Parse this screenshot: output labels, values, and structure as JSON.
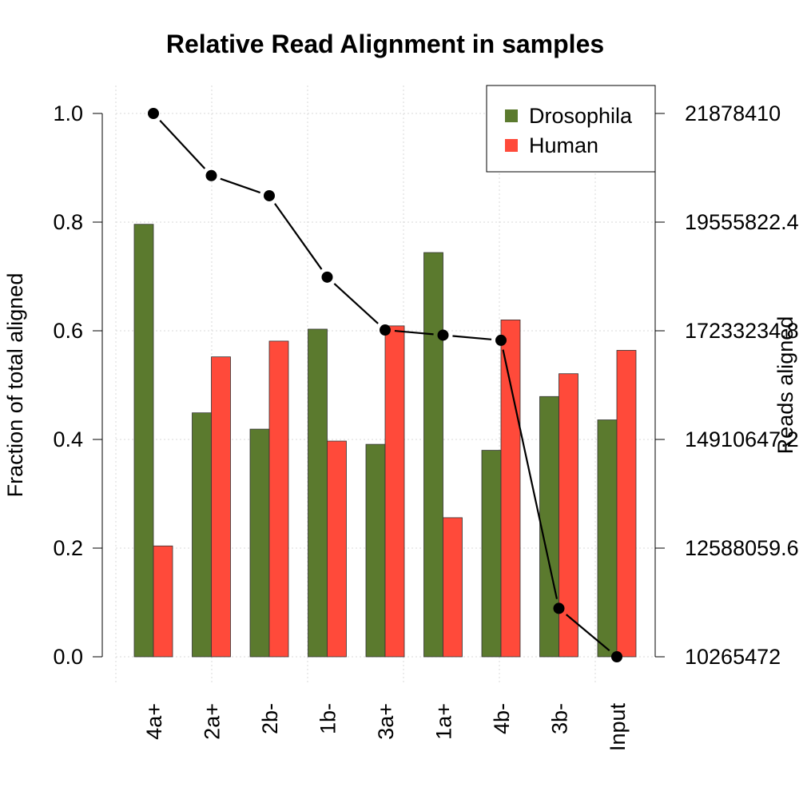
{
  "chart_data": {
    "type": "bar",
    "title": "Relative Read Alignment in samples",
    "xlabel": "",
    "ylabel": "Fraction of total aligned",
    "y2label": "Reads aligned",
    "categories": [
      "4a+",
      "2a+",
      "2b-",
      "1b-",
      "3a+",
      "1a+",
      "4b-",
      "3b-",
      "Input"
    ],
    "series": [
      {
        "name": "Drosophila",
        "color": "#5b7a2e",
        "values": [
          0.796,
          0.449,
          0.419,
          0.603,
          0.391,
          0.744,
          0.38,
          0.479,
          0.436
        ]
      },
      {
        "name": "Human",
        "color": "#ff4a3a",
        "values": [
          0.204,
          0.552,
          0.581,
          0.397,
          0.609,
          0.256,
          0.62,
          0.521,
          0.564
        ]
      }
    ],
    "line": {
      "name": "Reads aligned",
      "axis": "right",
      "values": [
        21878410,
        20550000,
        20120000,
        18380000,
        17250000,
        17140000,
        17030000,
        11300000,
        10265472
      ]
    },
    "ylim": [
      0,
      1
    ],
    "y_ticks": [
      "0.0",
      "0.2",
      "0.4",
      "0.6",
      "0.8",
      "1.0"
    ],
    "y2lim": [
      10265472,
      21878410
    ],
    "y2_ticks": [
      "10265472",
      "12588059.6",
      "14910647.2",
      "17233234.8",
      "19555822.4",
      "21878410"
    ],
    "grid": true,
    "legend_position": "top-right"
  }
}
